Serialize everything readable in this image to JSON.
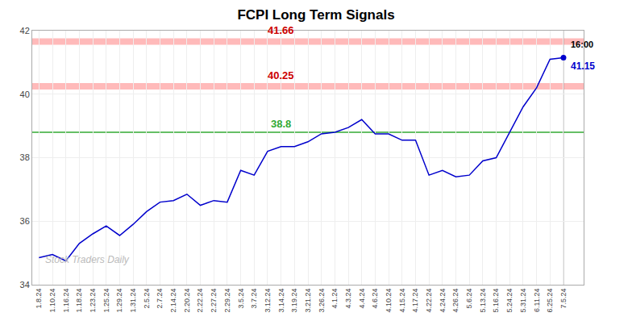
{
  "chart_data": {
    "type": "line",
    "title": "FCPI Long Term Signals",
    "categories": [
      "1.8.24",
      "1.10.24",
      "1.16.24",
      "1.18.24",
      "1.23.24",
      "1.25.24",
      "1.29.24",
      "1.31.24",
      "2.5.24",
      "2.7.24",
      "2.14.24",
      "2.20.24",
      "2.22.24",
      "2.27.24",
      "2.29.24",
      "3.5.24",
      "3.7.24",
      "3.12.24",
      "3.14.24",
      "3.19.24",
      "3.21.24",
      "3.26.24",
      "4.1.24",
      "4.3.24",
      "4.4.24",
      "4.6.24",
      "4.10.24",
      "4.15.24",
      "4.17.24",
      "4.22.24",
      "4.24.24",
      "4.26.24",
      "5.6.24",
      "5.13.24",
      "5.16.24",
      "5.24.24",
      "5.31.24",
      "6.11.24",
      "6.25.24",
      "7.5.24"
    ],
    "values": [
      34.85,
      34.95,
      34.75,
      35.3,
      35.6,
      35.85,
      35.55,
      35.9,
      36.3,
      36.6,
      36.65,
      36.85,
      36.5,
      36.65,
      36.6,
      37.6,
      37.45,
      38.2,
      38.35,
      38.35,
      38.5,
      38.75,
      38.8,
      38.95,
      39.2,
      38.75,
      38.75,
      38.55,
      38.55,
      37.45,
      37.6,
      37.4,
      37.45,
      37.9,
      38.0,
      38.8,
      39.6,
      40.2,
      41.1,
      41.15
    ],
    "color": "#0000cc",
    "hlines": [
      {
        "value": 38.8,
        "label": "38.8",
        "color": "#33aa33",
        "label_color": "#33aa33"
      },
      {
        "value": 40.25,
        "label": "40.25",
        "color": "#ffaaaa",
        "label_color": "#cc0000"
      },
      {
        "value": 41.66,
        "label": "41.66",
        "color": "#ffaaaa",
        "label_color": "#cc0000"
      }
    ],
    "last_point": {
      "label": "16:00",
      "value": 41.15
    },
    "watermark": "Stock Traders Daily",
    "ylim": [
      34,
      42
    ],
    "yticks": [
      34,
      36,
      38,
      40,
      42
    ],
    "grid": true
  }
}
